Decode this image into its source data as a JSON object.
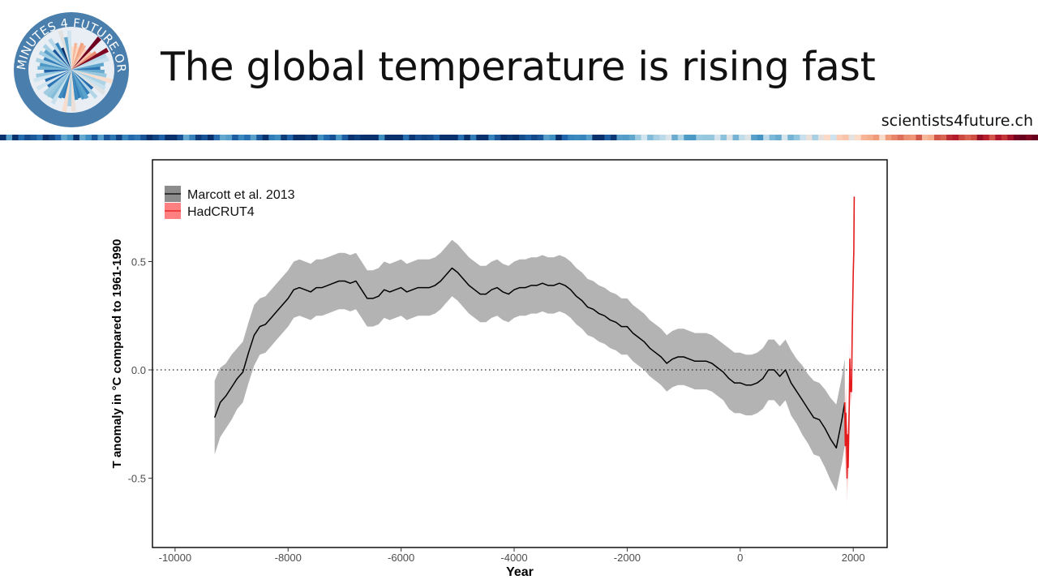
{
  "slide": {
    "title": "The global temperature is rising fast",
    "website": "scientists4future.ch",
    "logo_text": "2 MINUTES 4 FUTURE.ORG"
  },
  "colors": {
    "band": "#b3b3b3",
    "line": "#000000",
    "recent_band": "#ff9e9e",
    "recent_line": "#e41a1c",
    "frame": "#000000",
    "logo_ring": "#4a7fad"
  },
  "chart_data": {
    "type": "line",
    "title": "",
    "xlabel": "Year",
    "ylabel": "T anomaly in °C compared to 1961-1990",
    "xlim": [
      -10400,
      2600
    ],
    "ylim": [
      -0.82,
      0.97
    ],
    "x_ticks": [
      -10000,
      -8000,
      -6000,
      -4000,
      -2000,
      0,
      2000
    ],
    "x_tick_labels": [
      "-10000",
      "-8000",
      "-6000",
      "-4000",
      "-2000",
      "0",
      "2000"
    ],
    "y_ticks": [
      -0.5,
      0.0,
      0.5
    ],
    "y_tick_labels": [
      "-0.5",
      "0.0",
      "0.5"
    ],
    "reference_line": {
      "y": 0,
      "style": "dotted"
    },
    "grid": false,
    "legend_position": "top-left",
    "series": [
      {
        "name": "Marcott et al. 2013",
        "type": "line_with_band",
        "x": [
          -9300,
          -9200,
          -9100,
          -9000,
          -8900,
          -8800,
          -8700,
          -8600,
          -8500,
          -8400,
          -8300,
          -8200,
          -8100,
          -8000,
          -7900,
          -7800,
          -7700,
          -7600,
          -7500,
          -7400,
          -7300,
          -7200,
          -7100,
          -7000,
          -6900,
          -6800,
          -6700,
          -6600,
          -6500,
          -6400,
          -6300,
          -6200,
          -6100,
          -6000,
          -5900,
          -5800,
          -5700,
          -5600,
          -5500,
          -5400,
          -5300,
          -5200,
          -5100,
          -5000,
          -4900,
          -4800,
          -4700,
          -4600,
          -4500,
          -4400,
          -4300,
          -4200,
          -4100,
          -4000,
          -3900,
          -3800,
          -3700,
          -3600,
          -3500,
          -3400,
          -3300,
          -3200,
          -3100,
          -3000,
          -2900,
          -2800,
          -2700,
          -2600,
          -2500,
          -2400,
          -2300,
          -2200,
          -2100,
          -2000,
          -1900,
          -1800,
          -1700,
          -1600,
          -1500,
          -1400,
          -1300,
          -1200,
          -1100,
          -1000,
          -900,
          -800,
          -700,
          -600,
          -500,
          -400,
          -300,
          -200,
          -100,
          0,
          100,
          200,
          300,
          400,
          500,
          600,
          700,
          800,
          900,
          1000,
          1100,
          1200,
          1300,
          1400,
          1500,
          1600,
          1700,
          1800,
          1850
        ],
        "y": [
          -0.22,
          -0.15,
          -0.12,
          -0.08,
          -0.04,
          -0.01,
          0.08,
          0.16,
          0.2,
          0.21,
          0.24,
          0.27,
          0.3,
          0.33,
          0.37,
          0.38,
          0.37,
          0.36,
          0.38,
          0.38,
          0.39,
          0.4,
          0.41,
          0.41,
          0.4,
          0.41,
          0.37,
          0.33,
          0.33,
          0.34,
          0.37,
          0.36,
          0.37,
          0.38,
          0.36,
          0.37,
          0.38,
          0.38,
          0.38,
          0.39,
          0.41,
          0.44,
          0.47,
          0.45,
          0.42,
          0.39,
          0.37,
          0.35,
          0.35,
          0.37,
          0.38,
          0.36,
          0.35,
          0.37,
          0.38,
          0.38,
          0.39,
          0.39,
          0.4,
          0.39,
          0.39,
          0.4,
          0.39,
          0.37,
          0.34,
          0.32,
          0.29,
          0.28,
          0.26,
          0.25,
          0.23,
          0.22,
          0.2,
          0.2,
          0.17,
          0.15,
          0.13,
          0.1,
          0.08,
          0.06,
          0.03,
          0.05,
          0.06,
          0.06,
          0.05,
          0.04,
          0.04,
          0.04,
          0.03,
          0.01,
          -0.01,
          -0.04,
          -0.06,
          -0.06,
          -0.07,
          -0.07,
          -0.06,
          -0.04,
          0.0,
          0.0,
          -0.03,
          0.0,
          -0.06,
          -0.1,
          -0.14,
          -0.18,
          -0.22,
          -0.23,
          -0.27,
          -0.32,
          -0.36,
          -0.23,
          -0.15
        ],
        "band_halfwidth": [
          0.17,
          0.16,
          0.15,
          0.15,
          0.14,
          0.14,
          0.14,
          0.14,
          0.13,
          0.13,
          0.13,
          0.13,
          0.13,
          0.13,
          0.13,
          0.13,
          0.13,
          0.13,
          0.13,
          0.13,
          0.13,
          0.13,
          0.13,
          0.13,
          0.13,
          0.13,
          0.13,
          0.13,
          0.13,
          0.13,
          0.13,
          0.13,
          0.13,
          0.13,
          0.13,
          0.13,
          0.13,
          0.13,
          0.13,
          0.13,
          0.13,
          0.13,
          0.13,
          0.13,
          0.13,
          0.13,
          0.13,
          0.13,
          0.13,
          0.13,
          0.13,
          0.13,
          0.13,
          0.13,
          0.13,
          0.13,
          0.13,
          0.13,
          0.13,
          0.13,
          0.13,
          0.13,
          0.13,
          0.13,
          0.13,
          0.13,
          0.13,
          0.13,
          0.13,
          0.13,
          0.13,
          0.13,
          0.13,
          0.13,
          0.13,
          0.13,
          0.13,
          0.13,
          0.13,
          0.13,
          0.13,
          0.13,
          0.13,
          0.13,
          0.13,
          0.13,
          0.13,
          0.13,
          0.13,
          0.13,
          0.13,
          0.14,
          0.14,
          0.14,
          0.14,
          0.14,
          0.14,
          0.14,
          0.14,
          0.14,
          0.14,
          0.14,
          0.15,
          0.15,
          0.16,
          0.16,
          0.17,
          0.17,
          0.18,
          0.19,
          0.2,
          0.2,
          0.2
        ]
      },
      {
        "name": "HadCRUT4",
        "type": "line_with_band",
        "x": [
          1850,
          1860,
          1870,
          1880,
          1890,
          1900,
          1910,
          1920,
          1930,
          1940,
          1950,
          1960,
          1970,
          1980,
          1990,
          2000,
          2010,
          2018
        ],
        "y": [
          -0.15,
          -0.35,
          -0.2,
          -0.3,
          -0.5,
          -0.3,
          -0.45,
          -0.3,
          -0.15,
          0.05,
          -0.1,
          -0.05,
          -0.1,
          0.15,
          0.3,
          0.45,
          0.55,
          0.8
        ],
        "band_halfwidth": [
          0.15,
          0.14,
          0.13,
          0.12,
          0.12,
          0.11,
          0.11,
          0.1,
          0.1,
          0.09,
          0.08,
          0.06,
          0.05,
          0.04,
          0.04,
          0.04,
          0.04,
          0.05
        ]
      }
    ]
  }
}
